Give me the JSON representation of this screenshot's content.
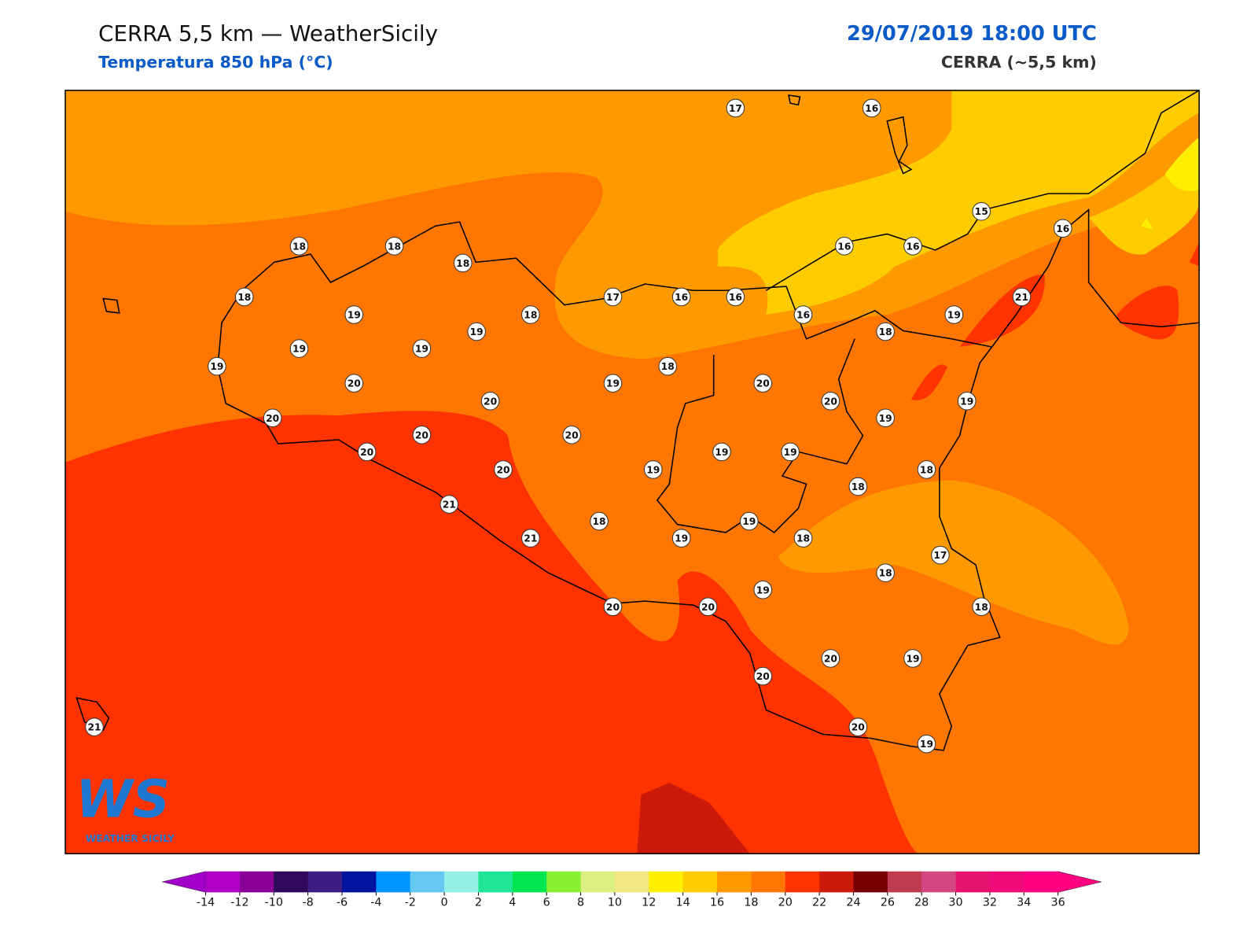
{
  "header": {
    "title": "CERRA 5,5 km — WeatherSicily",
    "subtitle": "Temperatura 850 hPa (°C)",
    "date": "29/07/2019 18:00 UTC",
    "model": "CERRA (~5,5 km)"
  },
  "logo": {
    "mark": "WS",
    "name": "WEATHER SICILY"
  },
  "stations": [
    17,
    16,
    18,
    18,
    18,
    18,
    19,
    19,
    18,
    17,
    16,
    16,
    16,
    16,
    15,
    16,
    21,
    16,
    19,
    18,
    19,
    19,
    19,
    20,
    18,
    19,
    20,
    20,
    20,
    19,
    20,
    20,
    20,
    19,
    20,
    20,
    19,
    19,
    19,
    18,
    18,
    21,
    18,
    19,
    21,
    19,
    18,
    17,
    18,
    19,
    18,
    20,
    20,
    20,
    19,
    20,
    21,
    20,
    19
  ],
  "colorbar": {
    "ticks": [
      -14,
      -12,
      -10,
      -8,
      -6,
      -4,
      -2,
      0,
      2,
      4,
      6,
      8,
      10,
      12,
      14,
      16,
      18,
      20,
      22,
      24,
      26,
      28,
      30,
      32,
      34,
      36
    ],
    "colors": [
      "#b000c8",
      "#8a0096",
      "#300a5a",
      "#3c1e82",
      "#0014a0",
      "#0096ff",
      "#64c8f0",
      "#96f0e6",
      "#1ee696",
      "#00e650",
      "#8cf032",
      "#dcf082",
      "#f0e682",
      "#fff000",
      "#ffcc00",
      "#ff9900",
      "#ff7700",
      "#ff3300",
      "#cc1a0a",
      "#780000",
      "#be3c50",
      "#d24682",
      "#e6146e",
      "#f00a78",
      "#ff0080"
    ],
    "under": "#a000c8",
    "over": "#ff0080"
  }
}
